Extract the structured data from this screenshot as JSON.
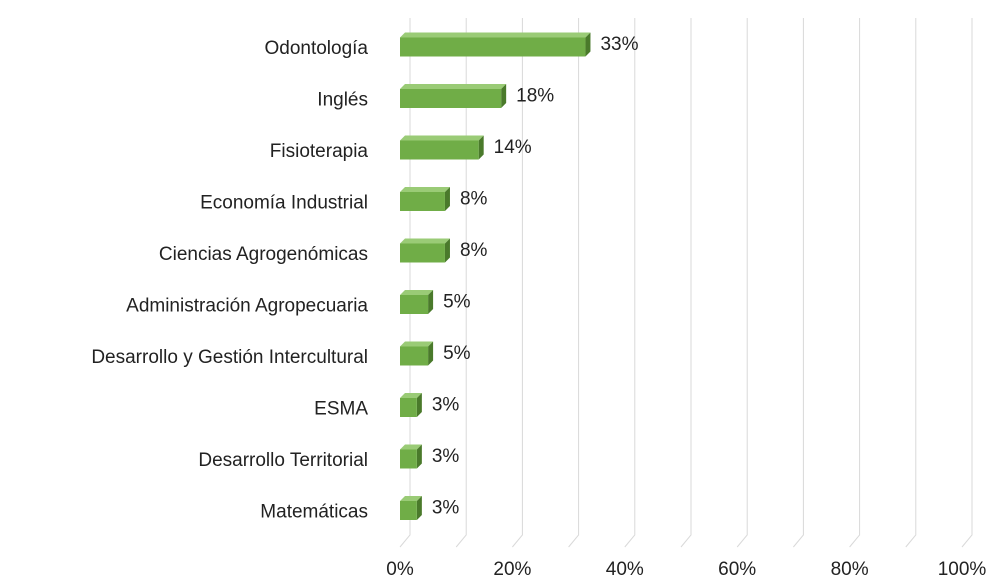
{
  "chart_data": {
    "type": "bar3d_horizontal",
    "categories": [
      "Odontología",
      "Inglés",
      "Fisioterapia",
      "Economía Industrial",
      "Ciencias Agrogenómicas",
      "Administración Agropecuaria",
      "Desarrollo y Gestión Intercultural",
      "ESMA",
      "Desarrollo Territorial",
      "Matemáticas"
    ],
    "values": [
      33,
      18,
      14,
      8,
      8,
      5,
      5,
      3,
      3,
      3
    ],
    "value_labels": [
      "33%",
      "18%",
      "14%",
      "8%",
      "8%",
      "5%",
      "5%",
      "3%",
      "3%",
      "3%"
    ],
    "color": "#70ad47",
    "xlim": [
      0,
      100
    ],
    "xticks": [
      {
        "value": 0,
        "label": "0%"
      },
      {
        "value": 20,
        "label": "20%"
      },
      {
        "value": 40,
        "label": "40%"
      },
      {
        "value": 60,
        "label": "60%"
      },
      {
        "value": 80,
        "label": "80%"
      },
      {
        "value": 100,
        "label": "100%"
      }
    ],
    "grid": true
  }
}
